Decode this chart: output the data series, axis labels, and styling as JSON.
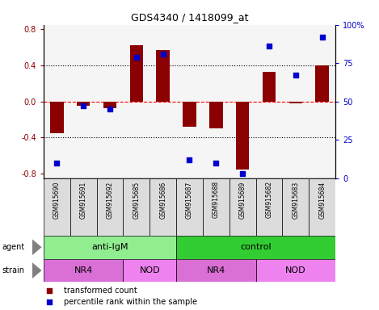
{
  "title": "GDS4340 / 1418099_at",
  "samples": [
    "GSM915690",
    "GSM915691",
    "GSM915692",
    "GSM915685",
    "GSM915686",
    "GSM915687",
    "GSM915688",
    "GSM915689",
    "GSM915682",
    "GSM915683",
    "GSM915684"
  ],
  "bar_values": [
    -0.35,
    -0.05,
    -0.07,
    0.62,
    0.57,
    -0.28,
    -0.3,
    -0.75,
    0.33,
    -0.02,
    0.4
  ],
  "percentile_values": [
    10,
    47,
    45,
    79,
    81,
    12,
    10,
    3,
    86,
    67,
    92
  ],
  "bar_color": "#8B0000",
  "dot_color": "#0000CD",
  "ylim": [
    -0.85,
    0.85
  ],
  "yticks_left": [
    -0.8,
    -0.4,
    0.0,
    0.4,
    0.8
  ],
  "yticks_right": [
    0,
    25,
    50,
    75,
    100
  ],
  "ytick_labels_right": [
    "0",
    "25",
    "50",
    "75",
    "100%"
  ],
  "hlines_dotted": [
    0.4,
    -0.4
  ],
  "hline_dashed": 0.0,
  "agent_groups": [
    {
      "label": "anti-IgM",
      "start": 0,
      "end": 5,
      "color": "#90EE90"
    },
    {
      "label": "control",
      "start": 5,
      "end": 11,
      "color": "#32CD32"
    }
  ],
  "strain_groups": [
    {
      "label": "NR4",
      "start": 0,
      "end": 3,
      "color": "#DA70D6"
    },
    {
      "label": "NOD",
      "start": 3,
      "end": 5,
      "color": "#EE82EE"
    },
    {
      "label": "NR4",
      "start": 5,
      "end": 8,
      "color": "#DA70D6"
    },
    {
      "label": "NOD",
      "start": 8,
      "end": 11,
      "color": "#EE82EE"
    }
  ],
  "label_bg_color": "#DCDCDC",
  "legend_items": [
    {
      "label": "transformed count",
      "color": "#8B0000"
    },
    {
      "label": "percentile rank within the sample",
      "color": "#0000CD"
    }
  ],
  "bar_width": 0.5
}
